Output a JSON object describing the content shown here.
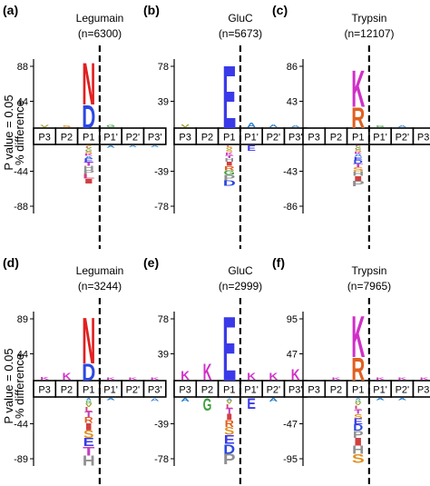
{
  "figure": {
    "ylabel_line1": "P value = 0.05",
    "ylabel_line2": "% difference"
  },
  "positions": [
    "P3",
    "P2",
    "P1",
    "P1'",
    "P2'",
    "P3'"
  ],
  "colors": {
    "N": "#e02020",
    "D": "#2c48e0",
    "E": "#3a3ae8",
    "K": "#d030c8",
    "R": "#e06020",
    "A": "#2c80d0",
    "G": "#40a040",
    "L": "#d04080",
    "V": "#a0a020",
    "S": "#e09020",
    "I": "#d04040",
    "T": "#c040c0",
    "other": "#909090"
  },
  "chart_data": [
    {
      "id": "a",
      "panel_label": "(a)",
      "type": "sequence-logo",
      "title": "Legumain",
      "n": "(n=6300)",
      "ylim": [
        -88,
        88
      ],
      "yticks": [
        "88",
        "44",
        "-44",
        "-88"
      ],
      "p1_upper": [
        {
          "letter": "D",
          "value": 30
        },
        {
          "letter": "N",
          "value": 54
        }
      ],
      "p1_lower": {
        "letters": "SLVGSKAETHPLI",
        "value": -48
      },
      "other": [
        {
          "pos": 0,
          "letter": "V",
          "value": 3
        },
        {
          "pos": 1,
          "letter": "S",
          "value": 2
        },
        {
          "pos": 3,
          "letter": "G",
          "value": 3
        },
        {
          "pos": 3,
          "letter": "A",
          "value": -3
        },
        {
          "pos": 4,
          "letter": "A",
          "value": -2
        },
        {
          "pos": 5,
          "letter": "A",
          "value": -2
        }
      ]
    },
    {
      "id": "b",
      "panel_label": "(b)",
      "type": "sequence-logo",
      "title": "GluC",
      "n": "(n=5673)",
      "ylim": [
        -78,
        78
      ],
      "yticks": [
        "78",
        "39",
        "-39",
        "-78"
      ],
      "p1_upper": [
        {
          "letter": "E",
          "value": 72
        }
      ],
      "p1_lower": {
        "letters": "LSVSKTHIRGPD",
        "value": -45
      },
      "other": [
        {
          "pos": 0,
          "letter": "V",
          "value": 3
        },
        {
          "pos": 3,
          "letter": "A",
          "value": 5
        },
        {
          "pos": 4,
          "letter": "A",
          "value": 3
        },
        {
          "pos": 5,
          "letter": "A",
          "value": 2
        },
        {
          "pos": 3,
          "letter": "E",
          "value": -6
        }
      ]
    },
    {
      "id": "c",
      "panel_label": "(c)",
      "type": "sequence-logo",
      "title": "Trypsin",
      "n": "(n=12107)",
      "ylim": [
        -86,
        86
      ],
      "yticks": [
        "86",
        "43",
        "-43",
        "-86"
      ],
      "p1_upper": [
        {
          "letter": "R",
          "value": 26
        },
        {
          "letter": "K",
          "value": 46
        }
      ],
      "p1_lower": {
        "letters": "LVGSKAEDTSHIP",
        "value": -50
      },
      "other": [
        {
          "pos": 3,
          "letter": "G",
          "value": 2
        },
        {
          "pos": 4,
          "letter": "A",
          "value": 2
        }
      ]
    },
    {
      "id": "d",
      "panel_label": "(d)",
      "type": "sequence-logo",
      "title": "Legumain",
      "n": "(n=3244)",
      "ylim": [
        -89,
        89
      ],
      "yticks": [
        "89",
        "44",
        "-44",
        "-89"
      ],
      "p1_upper": [
        {
          "letter": "D",
          "value": 22
        },
        {
          "letter": "N",
          "value": 60
        }
      ],
      "p1_lower": {
        "letters": "AGVLTRISETH",
        "value": -86
      },
      "other": [
        {
          "pos": 0,
          "letter": "K",
          "value": 4
        },
        {
          "pos": 1,
          "letter": "K",
          "value": 9
        },
        {
          "pos": 3,
          "letter": "K",
          "value": 3
        },
        {
          "pos": 4,
          "letter": "K",
          "value": 3
        },
        {
          "pos": 5,
          "letter": "K",
          "value": 3
        },
        {
          "pos": 3,
          "letter": "A",
          "value": -3
        },
        {
          "pos": 5,
          "letter": "A",
          "value": -4
        }
      ]
    },
    {
      "id": "e",
      "panel_label": "(e)",
      "type": "sequence-logo",
      "title": "GluC",
      "n": "(n=2999)",
      "ylim": [
        -78,
        78
      ],
      "yticks": [
        "78",
        "39",
        "-39",
        "-78"
      ],
      "p1_upper": [
        {
          "letter": "E",
          "value": 74
        }
      ],
      "p1_lower": {
        "letters": "AVLTIRSEDP",
        "value": -74
      },
      "other": [
        {
          "pos": 0,
          "letter": "K",
          "value": 10
        },
        {
          "pos": 1,
          "letter": "K",
          "value": 18
        },
        {
          "pos": 3,
          "letter": "K",
          "value": 8
        },
        {
          "pos": 4,
          "letter": "K",
          "value": 8
        },
        {
          "pos": 5,
          "letter": "K",
          "value": 12
        },
        {
          "pos": 1,
          "letter": "G",
          "value": -14
        },
        {
          "pos": 3,
          "letter": "E",
          "value": -12
        },
        {
          "pos": 0,
          "letter": "A",
          "value": -4
        },
        {
          "pos": 4,
          "letter": "A",
          "value": -4
        }
      ]
    },
    {
      "id": "f",
      "panel_label": "(f)",
      "type": "sequence-logo",
      "title": "Trypsin",
      "n": "(n=7965)",
      "ylim": [
        -95,
        95
      ],
      "yticks": [
        "95",
        "47",
        "-47",
        "-95"
      ],
      "p1_upper": [
        {
          "letter": "R",
          "value": 32
        },
        {
          "letter": "K",
          "value": 58
        }
      ],
      "p1_lower": {
        "letters": "AGVLTSEDPIHS",
        "value": -88
      },
      "other": [
        {
          "pos": 1,
          "letter": "K",
          "value": 3
        },
        {
          "pos": 3,
          "letter": "K",
          "value": 3
        },
        {
          "pos": 4,
          "letter": "K",
          "value": 3
        },
        {
          "pos": 5,
          "letter": "K",
          "value": 3
        },
        {
          "pos": 3,
          "letter": "A",
          "value": -3
        },
        {
          "pos": 4,
          "letter": "A",
          "value": -3
        }
      ]
    }
  ]
}
